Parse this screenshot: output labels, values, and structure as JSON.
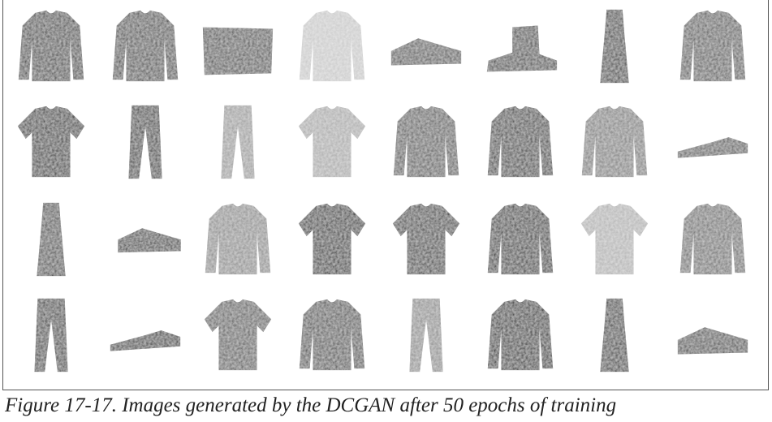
{
  "caption": "Figure 17-17. Images generated by the DCGAN after 50 epochs of training"
}
